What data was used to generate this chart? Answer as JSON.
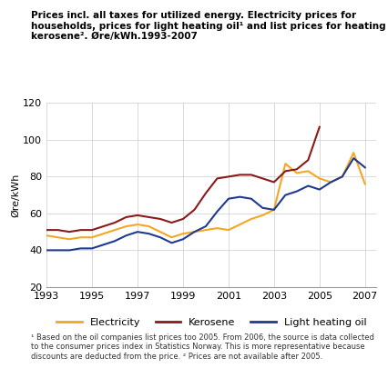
{
  "title": "Prices incl. all taxes for utilized energy. Electricity prices for\nhouseholds, prices for light heating oil¹ and list prices for heating\nkerosene². Øre/kWh.1993-2007",
  "ylabel": "Øre/kWh",
  "ylim": [
    20,
    120
  ],
  "yticks": [
    20,
    40,
    60,
    80,
    100,
    120
  ],
  "xticks": [
    1993,
    1995,
    1997,
    1999,
    2001,
    2003,
    2005,
    2007
  ],
  "footnote": "¹ Based on the oil companies list prices too 2005. From 2006, the source is data collected\nto the consumer prices index in Statistics Norway. This is more representative because\ndiscounts are deducted from the price. ² Prices are not available after 2005.",
  "electricity": {
    "x": [
      1993,
      1993.5,
      1994,
      1994.5,
      1995,
      1995.5,
      1996,
      1996.5,
      1997,
      1997.5,
      1998,
      1998.5,
      1999,
      1999.5,
      2000,
      2000.5,
      2001,
      2001.5,
      2002,
      2002.5,
      2003,
      2003.5,
      2004,
      2004.5,
      2005,
      2005.5,
      2006,
      2006.5,
      2007
    ],
    "y": [
      48,
      47,
      46,
      47,
      47,
      49,
      51,
      53,
      54,
      53,
      50,
      47,
      49,
      50,
      51,
      52,
      51,
      54,
      57,
      59,
      62,
      87,
      82,
      83,
      79,
      77,
      80,
      93,
      76
    ],
    "color": "#F5A623",
    "label": "Electricity"
  },
  "kerosene": {
    "x": [
      1993,
      1993.5,
      1994,
      1994.5,
      1995,
      1995.5,
      1996,
      1996.5,
      1997,
      1997.5,
      1998,
      1998.5,
      1999,
      1999.5,
      2000,
      2000.5,
      2001,
      2001.5,
      2002,
      2002.5,
      2003,
      2003.5,
      2004,
      2004.5,
      2005
    ],
    "y": [
      51,
      51,
      50,
      51,
      51,
      53,
      55,
      58,
      59,
      58,
      57,
      55,
      57,
      62,
      71,
      79,
      80,
      81,
      81,
      79,
      77,
      83,
      84,
      89,
      107
    ],
    "color": "#8B1A1A",
    "label": "Kerosene"
  },
  "light_heating_oil": {
    "x": [
      1993,
      1993.5,
      1994,
      1994.5,
      1995,
      1995.5,
      1996,
      1996.5,
      1997,
      1997.5,
      1998,
      1998.5,
      1999,
      1999.5,
      2000,
      2000.5,
      2001,
      2001.5,
      2002,
      2002.5,
      2003,
      2003.5,
      2004,
      2004.5,
      2005,
      2005.5,
      2006,
      2006.5,
      2007
    ],
    "y": [
      40,
      40,
      40,
      41,
      41,
      43,
      45,
      48,
      50,
      49,
      47,
      44,
      46,
      50,
      53,
      61,
      68,
      69,
      68,
      63,
      62,
      70,
      72,
      75,
      73,
      77,
      80,
      90,
      85
    ],
    "color": "#1F3A8F",
    "label": "Light heating oil"
  },
  "background_color": "#ffffff",
  "grid_color": "#cccccc"
}
